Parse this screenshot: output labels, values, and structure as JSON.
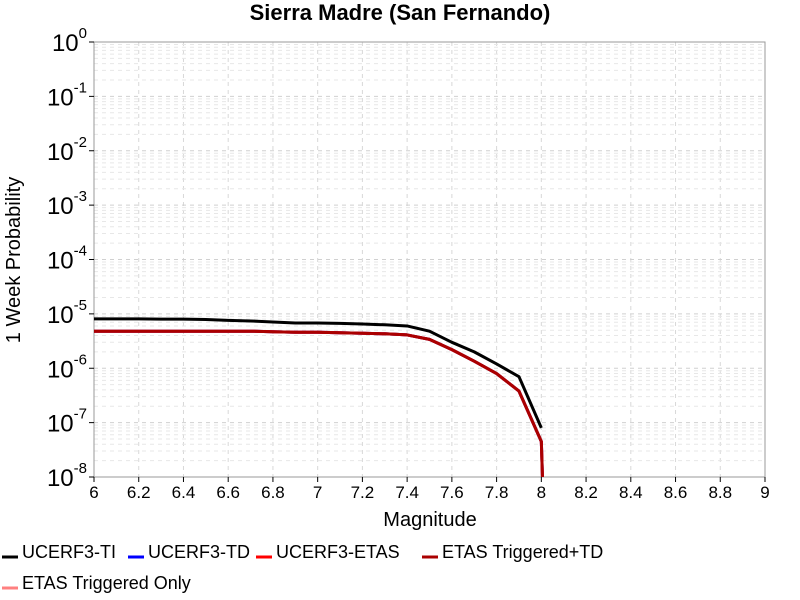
{
  "chart_data": {
    "type": "line",
    "title": "Sierra Madre (San Fernando)",
    "xlabel": "Magnitude",
    "ylabel": "1 Week Probability",
    "xlim": [
      6,
      9
    ],
    "ylim": [
      1e-08,
      1
    ],
    "yscale": "log",
    "grid": true,
    "legend_position": "bottom",
    "x_ticks": [
      "6",
      "6.2",
      "6.4",
      "6.6",
      "6.8",
      "7",
      "7.2",
      "7.4",
      "7.6",
      "7.8",
      "8",
      "8.2",
      "8.4",
      "8.6",
      "8.8",
      "9"
    ],
    "y_ticks": [
      {
        "base": "10",
        "exp": "0",
        "value": 1
      },
      {
        "base": "10",
        "exp": "-1",
        "value": 0.1
      },
      {
        "base": "10",
        "exp": "-2",
        "value": 0.01
      },
      {
        "base": "10",
        "exp": "-3",
        "value": 0.001
      },
      {
        "base": "10",
        "exp": "-4",
        "value": 0.0001
      },
      {
        "base": "10",
        "exp": "-5",
        "value": 1e-05
      },
      {
        "base": "10",
        "exp": "-6",
        "value": 1e-06
      },
      {
        "base": "10",
        "exp": "-7",
        "value": 1e-07
      },
      {
        "base": "10",
        "exp": "-8",
        "value": 1e-08
      }
    ],
    "series": [
      {
        "name": "UCERF3-TI",
        "color": "#000000",
        "x": [
          6.0,
          6.1,
          6.2,
          6.3,
          6.4,
          6.5,
          6.6,
          6.7,
          6.8,
          6.9,
          7.0,
          7.1,
          7.2,
          7.3,
          7.4,
          7.5,
          7.6,
          7.7,
          7.8,
          7.9,
          8.0
        ],
        "y": [
          8.1e-06,
          8.1e-06,
          8.1e-06,
          8e-06,
          8e-06,
          7.9e-06,
          7.6e-06,
          7.4e-06,
          7.1e-06,
          6.8e-06,
          6.8e-06,
          6.7e-06,
          6.5e-06,
          6.3e-06,
          6e-06,
          4.8e-06,
          3e-06,
          2e-06,
          1.2e-06,
          7e-07,
          8e-08
        ]
      },
      {
        "name": "UCERF3-TD",
        "color": "#0000ff",
        "x": [
          6.0,
          6.1,
          6.2,
          6.3,
          6.4,
          6.5,
          6.6,
          6.7,
          6.8,
          6.9,
          7.0,
          7.1,
          7.2,
          7.3,
          7.4,
          7.5,
          7.6,
          7.7,
          7.8,
          7.9,
          8.0,
          8.005
        ],
        "y": [
          4.8e-06,
          4.8e-06,
          4.8e-06,
          4.8e-06,
          4.8e-06,
          4.8e-06,
          4.8e-06,
          4.8e-06,
          4.7e-06,
          4.6e-06,
          4.6e-06,
          4.5e-06,
          4.4e-06,
          4.3e-06,
          4.1e-06,
          3.4e-06,
          2.2e-06,
          1.35e-06,
          8e-07,
          3.8e-07,
          4.5e-08,
          1e-08
        ]
      },
      {
        "name": "UCERF3-ETAS",
        "color": "#ff0000",
        "x": [
          6.0,
          6.1,
          6.2,
          6.3,
          6.4,
          6.5,
          6.6,
          6.7,
          6.8,
          6.9,
          7.0,
          7.1,
          7.2,
          7.3,
          7.4,
          7.5,
          7.6,
          7.7,
          7.8,
          7.9,
          8.0,
          8.005
        ],
        "y": [
          4.8e-06,
          4.8e-06,
          4.8e-06,
          4.8e-06,
          4.8e-06,
          4.8e-06,
          4.8e-06,
          4.8e-06,
          4.7e-06,
          4.6e-06,
          4.6e-06,
          4.5e-06,
          4.4e-06,
          4.3e-06,
          4.1e-06,
          3.4e-06,
          2.2e-06,
          1.35e-06,
          8e-07,
          3.8e-07,
          4.5e-08,
          1e-08
        ]
      },
      {
        "name": "ETAS Triggered+TD",
        "color": "#aa0000",
        "x": [
          6.0,
          6.1,
          6.2,
          6.3,
          6.4,
          6.5,
          6.6,
          6.7,
          6.8,
          6.9,
          7.0,
          7.1,
          7.2,
          7.3,
          7.4,
          7.5,
          7.6,
          7.7,
          7.8,
          7.9,
          8.0,
          8.005
        ],
        "y": [
          4.8e-06,
          4.8e-06,
          4.8e-06,
          4.8e-06,
          4.8e-06,
          4.8e-06,
          4.8e-06,
          4.8e-06,
          4.7e-06,
          4.6e-06,
          4.6e-06,
          4.5e-06,
          4.4e-06,
          4.3e-06,
          4.1e-06,
          3.4e-06,
          2.2e-06,
          1.35e-06,
          8e-07,
          3.8e-07,
          4.5e-08,
          1e-08
        ]
      },
      {
        "name": "ETAS Triggered Only",
        "color": "#ff8080",
        "x": [],
        "y": []
      }
    ]
  }
}
